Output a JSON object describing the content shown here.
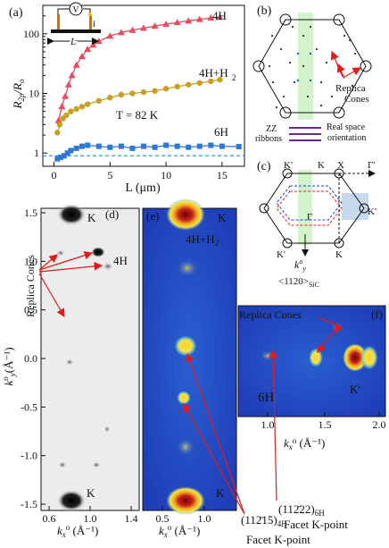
{
  "panel_a": {
    "label": "(a)",
    "ylabel_main": "R",
    "ylabel_sub": "2p",
    "ylabel_tail": "/R",
    "ylabel_sub2": "o",
    "xlabel": "L (μm)",
    "temp_label": "T = 82 K",
    "inset_v": "V",
    "inset_i": "I",
    "inset_l": "L",
    "series_labels": [
      "4H",
      "4H+H",
      "6H"
    ],
    "series_label_sub": "2"
  },
  "panel_b": {
    "label": "(b)",
    "replica": "Replica",
    "cones": "Cones",
    "zz": "ZZ",
    "ribbons": "ribbons",
    "realspace": "Real space",
    "orientation": "orientation"
  },
  "panel_c": {
    "label": "(c)",
    "k_labels": [
      "K'",
      "K",
      "X",
      "Γ'",
      "Γ",
      "K'",
      "K'",
      "K"
    ],
    "ky_label": "k",
    "ky_sup": "o",
    "ky_sub": "y",
    "direction": "<1120>",
    "direction_sub": "SiC"
  },
  "panel_d": {
    "label": "(d)",
    "k_top": "K",
    "k_bottom": "K",
    "poly": "4H",
    "replica": "Replica Cones",
    "ylabel": "k",
    "ylabel_sup": "o",
    "ylabel_sub": "y",
    "ylabel_unit": "(Å⁻¹)",
    "yticks": [
      "1.5",
      "1.0",
      "0.5",
      "0.0",
      "-0.5",
      "-1.0",
      "-1.5"
    ],
    "xticks": [
      "0.6",
      "1.0",
      "1.4"
    ]
  },
  "panel_e": {
    "label": "(e)",
    "k_top": "K",
    "k_bottom": "K",
    "poly": "4H+H",
    "poly_sub": "2",
    "xticks": [
      "0.5",
      "1.0"
    ]
  },
  "panel_f": {
    "label": "(f)",
    "replica": "Replica Cones",
    "poly": "6H",
    "kprime": "K'",
    "xticks": [
      "1.0",
      "1.5",
      "2.0"
    ],
    "xlabel": "k",
    "xlabel_sub": "x",
    "xlabel_sup": "o",
    "xlabel_unit": " (Å⁻¹)"
  },
  "bottom": {
    "xlabel_main": "k",
    "xlabel_sub": "x",
    "xlabel_sup": "o",
    "xlabel_unit": " (Å⁻¹)",
    "facet_6h": "(112̄22)",
    "facet_6h_sub": "6H",
    "facet_6h_line2": "Facet K-point",
    "facet_4h": "(112̄15)",
    "facet_4h_sub": "4H",
    "facet_4h_line2": "Facet K-point"
  },
  "colors": {
    "s4h": "#e84a5f",
    "s4hh2": "#c8a020",
    "s6h": "#2b78d6",
    "dashed": "#2ba3e6",
    "arrow": "#e41a1c"
  },
  "chart_data": {
    "type": "line",
    "title": "",
    "xlabel": "L (μm)",
    "ylabel": "R2p/Ro",
    "yscale": "log",
    "xlim": [
      -1,
      17
    ],
    "ylim": [
      0.6,
      300
    ],
    "grid": false,
    "series": [
      {
        "name": "4H",
        "marker": "triangle",
        "x": [
          0.4,
          0.7,
          1.0,
          1.3,
          1.6,
          2.0,
          2.5,
          3.0,
          3.5,
          4.0,
          5.0,
          6.0,
          7.0,
          8.0,
          9.0,
          10.0,
          11.0,
          12.0,
          13.0,
          14.0,
          14.8
        ],
        "values": [
          3.5,
          6,
          9,
          14,
          20,
          30,
          42,
          55,
          65,
          75,
          92,
          105,
          115,
          125,
          135,
          145,
          155,
          165,
          175,
          185,
          190
        ]
      },
      {
        "name": "4H+H2",
        "marker": "circle",
        "x": [
          0.3,
          0.5,
          0.8,
          1.1,
          1.5,
          2.0,
          2.5,
          3.0,
          4.0,
          5.0,
          6.0,
          7.0,
          8.0,
          9.0,
          10.0,
          11.0,
          12.0,
          13.0,
          14.0,
          14.8
        ],
        "values": [
          2.2,
          3.0,
          3.8,
          4.3,
          5.0,
          5.5,
          6.0,
          6.6,
          7.5,
          8.5,
          9.5,
          10.0,
          10.5,
          11.0,
          12.0,
          13.0,
          14.0,
          15.0,
          16.0,
          17.0
        ]
      },
      {
        "name": "6H",
        "marker": "square",
        "x": [
          0.3,
          0.6,
          0.9,
          1.2,
          1.5,
          2.0,
          2.5,
          3.0,
          4.0,
          5.0,
          6.0,
          7.0,
          8.0,
          9.0,
          10.0,
          11.0,
          12.0,
          13.0,
          14.0,
          15.0,
          16.5
        ],
        "values": [
          0.8,
          0.85,
          0.9,
          1.0,
          1.1,
          1.2,
          1.3,
          1.35,
          1.3,
          1.25,
          1.3,
          1.2,
          1.3,
          1.25,
          1.35,
          1.3,
          1.25,
          1.3,
          1.35,
          1.3,
          1.28
        ]
      }
    ],
    "reference_line": {
      "y": 0.9,
      "style": "dashed"
    },
    "xticks": [
      0,
      5,
      10,
      15
    ],
    "yticks": [
      1,
      10,
      100
    ],
    "legend": "none"
  }
}
